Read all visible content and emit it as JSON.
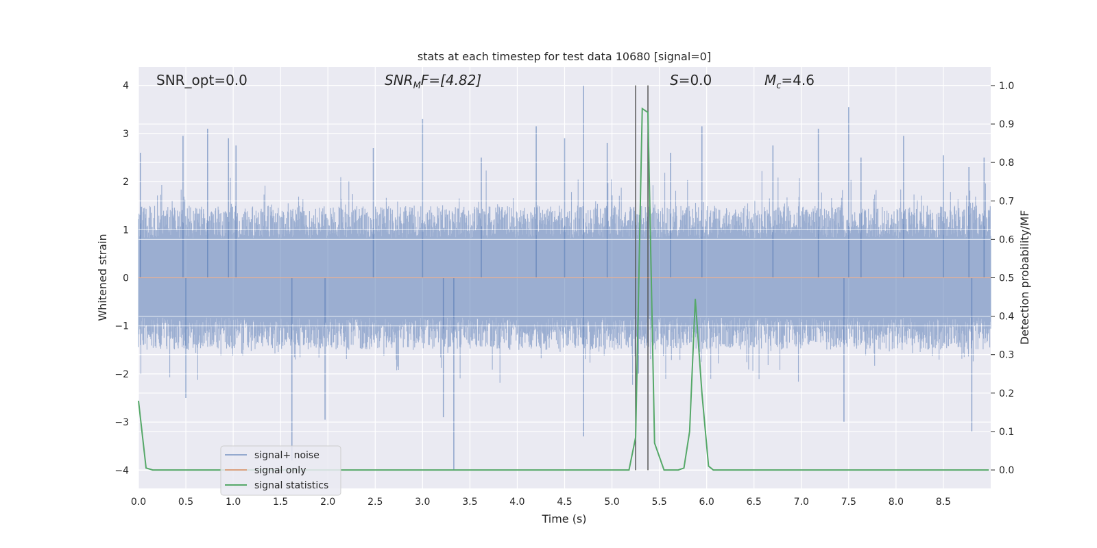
{
  "chart_data": {
    "type": "line",
    "title": "stats at each timestep for test data 10680 [signal=0]",
    "xlabel": "Time (s)",
    "ylabel": "Whitened strain",
    "y2label": "Detection probability/MF",
    "xlim": [
      0.0,
      9.0
    ],
    "ylim": [
      -4.38,
      4.38
    ],
    "y2lim": [
      -0.048,
      1.048
    ],
    "xticks": [
      "0.0",
      "0.5",
      "1.0",
      "1.5",
      "2.0",
      "2.5",
      "3.0",
      "3.5",
      "4.0",
      "4.5",
      "5.0",
      "5.5",
      "6.0",
      "6.5",
      "7.0",
      "7.5",
      "8.0",
      "8.5"
    ],
    "yticks": [
      "4",
      "3",
      "2",
      "1",
      "0",
      "−1",
      "−2",
      "−3",
      "−4"
    ],
    "y2ticks": [
      "1.0",
      "0.9",
      "0.8",
      "0.7",
      "0.6",
      "0.5",
      "0.4",
      "0.3",
      "0.2",
      "0.1",
      "0.0"
    ],
    "grid": true,
    "legend_position": "lower-left",
    "annotations": {
      "snr_opt": "SNR_opt=0.0",
      "snr_mf_main": "SNR",
      "snr_mf_sub": "M",
      "snr_mf_rest": "F=[4.82]",
      "s_main": "S",
      "s_rest": "=0.0",
      "mc_main": "M",
      "mc_sub": "c",
      "mc_rest": "=4.6"
    },
    "vlines": [
      5.25,
      5.38
    ],
    "colors": {
      "noise": "#4c72b0",
      "signal_only": "#dd8452",
      "statistics": "#55a868",
      "background": "#eaeaf2",
      "vline": "#555555"
    },
    "series": [
      {
        "name": "signal+ noise",
        "kind": "noise-band",
        "base_envelope": 1.5,
        "spikes": [
          [
            0.02,
            2.6
          ],
          [
            0.47,
            2.95
          ],
          [
            0.5,
            -2.5
          ],
          [
            0.73,
            3.1
          ],
          [
            0.95,
            2.9
          ],
          [
            1.03,
            2.75
          ],
          [
            1.62,
            -3.8
          ],
          [
            1.97,
            -2.95
          ],
          [
            2.48,
            2.7
          ],
          [
            3.0,
            3.3
          ],
          [
            3.22,
            -2.9
          ],
          [
            3.33,
            -4.0
          ],
          [
            3.62,
            2.5
          ],
          [
            4.2,
            3.15
          ],
          [
            4.5,
            2.9
          ],
          [
            4.7,
            4.0
          ],
          [
            4.7,
            -3.3
          ],
          [
            4.95,
            2.8
          ],
          [
            5.28,
            -2.0
          ],
          [
            5.62,
            2.6
          ],
          [
            5.95,
            3.15
          ],
          [
            6.7,
            2.75
          ],
          [
            7.18,
            3.1
          ],
          [
            7.5,
            3.55
          ],
          [
            7.45,
            -3.0
          ],
          [
            7.63,
            2.5
          ],
          [
            8.08,
            2.95
          ],
          [
            8.5,
            2.55
          ],
          [
            8.77,
            2.3
          ],
          [
            8.8,
            -3.2
          ],
          [
            8.93,
            2.5
          ]
        ]
      },
      {
        "name": "signal only",
        "kind": "line",
        "x": [
          0.0,
          9.0
        ],
        "y": [
          0.0,
          0.0
        ]
      },
      {
        "name": "signal statistics",
        "kind": "line",
        "axis": "right",
        "x": [
          0.0,
          0.08,
          0.15,
          0.3,
          1.0,
          2.0,
          3.0,
          4.0,
          5.0,
          5.18,
          5.25,
          5.32,
          5.38,
          5.45,
          5.55,
          5.62,
          5.7,
          5.76,
          5.82,
          5.88,
          5.95,
          6.02,
          6.07,
          7.0,
          8.0,
          8.98
        ],
        "y": [
          0.18,
          0.005,
          0.0,
          0.0,
          0.0,
          0.0,
          0.0,
          0.0,
          0.0,
          0.0,
          0.085,
          0.94,
          0.93,
          0.07,
          0.0,
          0.0,
          0.0,
          0.005,
          0.1,
          0.445,
          0.2,
          0.01,
          0.0,
          0.0,
          0.0,
          0.0
        ]
      }
    ]
  }
}
